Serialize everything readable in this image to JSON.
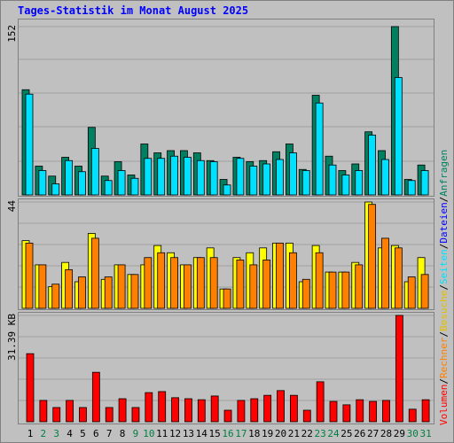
{
  "title": "Tages-Statistik im Monat August 2025",
  "chart_data": [
    {
      "type": "bar",
      "ylim": [
        0,
        152
      ],
      "yticks": [
        152
      ],
      "series": [
        {
          "name": "Anfragen",
          "color": "#008060",
          "values": [
            95,
            26,
            17,
            34,
            26,
            61,
            17,
            30,
            18,
            46,
            38,
            40,
            40,
            38,
            31,
            14,
            34,
            30,
            31,
            39,
            46,
            23,
            90,
            35,
            22,
            28,
            57,
            40,
            152,
            14,
            27
          ]
        },
        {
          "name": "Seiten",
          "color": "#00e0ff",
          "values": [
            91,
            22,
            10,
            31,
            21,
            42,
            13,
            22,
            15,
            33,
            33,
            35,
            34,
            31,
            30,
            9,
            33,
            26,
            28,
            32,
            38,
            22,
            83,
            27,
            18,
            22,
            54,
            32,
            106,
            13,
            22
          ]
        }
      ],
      "legend_extra": {
        "name": "Dateien",
        "color": "#0000ff"
      }
    },
    {
      "type": "bar",
      "ylim": [
        0,
        44
      ],
      "yticks": [
        44
      ],
      "series": [
        {
          "name": "Besuche",
          "color": "#ffff00",
          "values": [
            28,
            18,
            9,
            19,
            11,
            31,
            12,
            18,
            14,
            18,
            26,
            23,
            18,
            21,
            25,
            8,
            21,
            23,
            25,
            27,
            27,
            11,
            26,
            15,
            15,
            19,
            44,
            25,
            26,
            11,
            21
          ]
        },
        {
          "name": "Rechner",
          "color": "#ff8000",
          "values": [
            27,
            18,
            10,
            16,
            13,
            29,
            13,
            18,
            14,
            21,
            23,
            21,
            18,
            21,
            21,
            8,
            20,
            18,
            20,
            27,
            23,
            12,
            23,
            15,
            15,
            18,
            43,
            29,
            25,
            13,
            14
          ]
        }
      ]
    },
    {
      "type": "bar",
      "ylim": [
        0,
        31.39
      ],
      "yticks": [
        {
          "value": 31.39,
          "label": "31.39 KB"
        }
      ],
      "categories": [
        "1",
        "2",
        "3",
        "4",
        "5",
        "6",
        "7",
        "8",
        "9",
        "10",
        "11",
        "12",
        "13",
        "14",
        "15",
        "16",
        "17",
        "18",
        "19",
        "20",
        "21",
        "22",
        "23",
        "24",
        "25",
        "26",
        "27",
        "28",
        "29",
        "30",
        "31"
      ],
      "category_label_colors": [
        "#000000",
        "#008040",
        "#008040",
        "#000000",
        "#000000",
        "#000000",
        "#000000",
        "#000000",
        "#008040",
        "#008040",
        "#000000",
        "#000000",
        "#000000",
        "#000000",
        "#000000",
        "#008040",
        "#008040",
        "#000000",
        "#000000",
        "#000000",
        "#000000",
        "#000000",
        "#008040",
        "#008040",
        "#000000",
        "#000000",
        "#000000",
        "#000000",
        "#000000",
        "#008040",
        "#008040"
      ],
      "series": [
        {
          "name": "Volumen",
          "color": "#ff0000",
          "values": [
            20.1,
            6.3,
            4.2,
            6.3,
            4.2,
            14.6,
            4.2,
            6.8,
            4.2,
            8.6,
            8.9,
            7.1,
            6.8,
            6.5,
            7.6,
            3.4,
            6.3,
            6.8,
            7.8,
            9.2,
            7.8,
            3.4,
            11.8,
            6.0,
            5.0,
            6.5,
            6.0,
            6.3,
            31.39,
            3.7,
            6.5
          ]
        }
      ]
    }
  ],
  "legend_separator": "/"
}
